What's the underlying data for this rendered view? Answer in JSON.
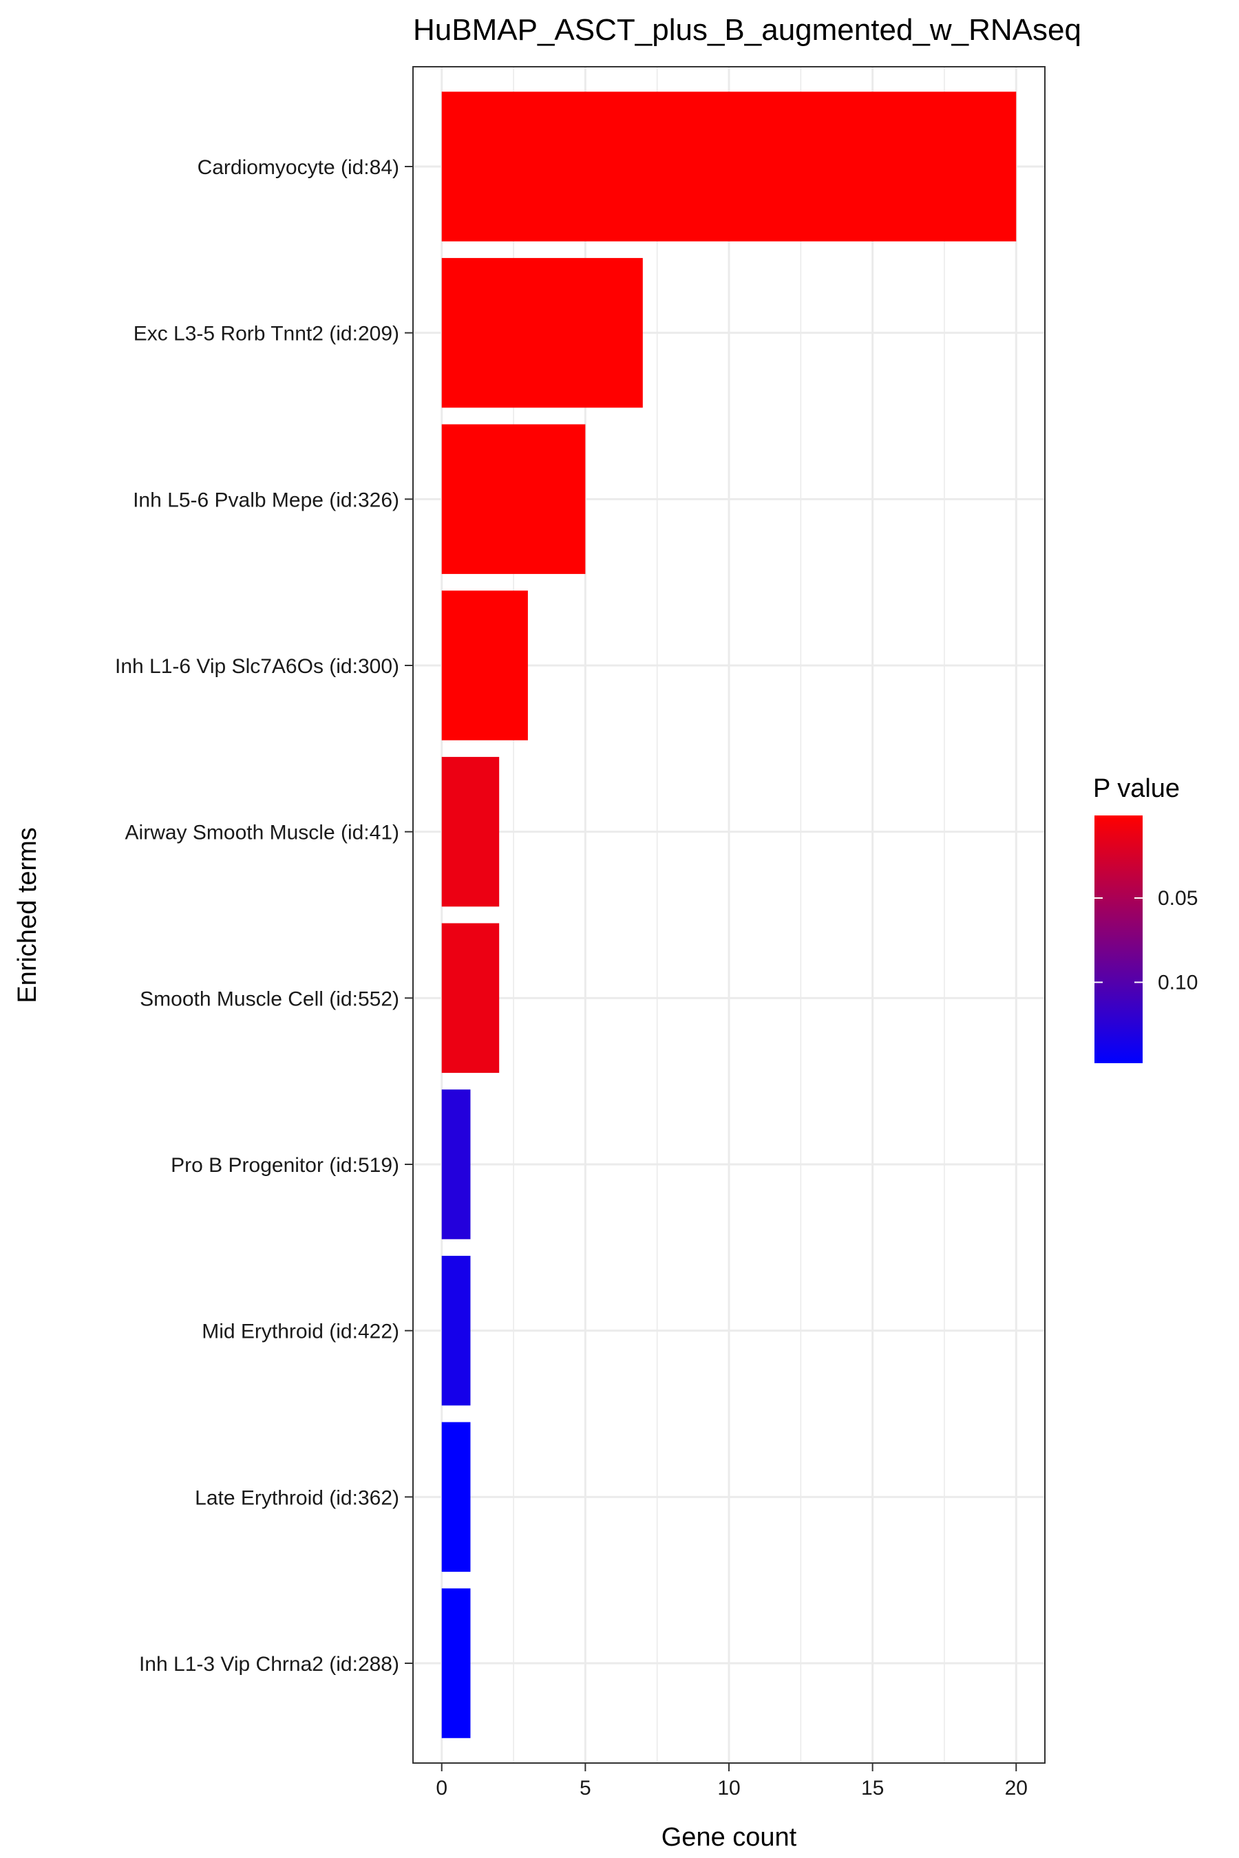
{
  "chart_data": {
    "type": "bar",
    "orientation": "horizontal",
    "title": "HuBMAP_ASCT_plus_B_augmented_w_RNAseq",
    "xlabel": "Gene count",
    "ylabel": "Enriched terms",
    "xlim": [
      -1,
      21
    ],
    "xticks": [
      0,
      5,
      10,
      15,
      20
    ],
    "grid": true,
    "categories": [
      "Cardiomyocyte (id:84)",
      "Exc L3-5 Rorb Tnnt2 (id:209)",
      "Inh L5-6 Pvalb Mepe (id:326)",
      "Inh L1-6 Vip Slc7A6Os (id:300)",
      "Airway Smooth Muscle (id:41)",
      "Smooth Muscle Cell (id:552)",
      "Pro B Progenitor (id:519)",
      "Mid Erythroid (id:422)",
      "Late Erythroid (id:362)",
      "Inh L1-3 Vip Chrna2 (id:288)"
    ],
    "values": [
      20,
      7,
      5,
      3,
      2,
      2,
      1,
      1,
      1,
      1
    ],
    "pvalues": [
      0.001,
      0.001,
      0.001,
      0.001,
      0.012,
      0.012,
      0.128,
      0.136,
      0.148,
      0.148
    ],
    "legend": {
      "title": "P value",
      "position": "right",
      "range": [
        0.001,
        0.148
      ],
      "ticks": [
        0.05,
        0.1
      ],
      "tick_labels": [
        "0.05",
        "0.10"
      ],
      "color_low": "#ff0000",
      "color_high": "#0000ff"
    }
  }
}
